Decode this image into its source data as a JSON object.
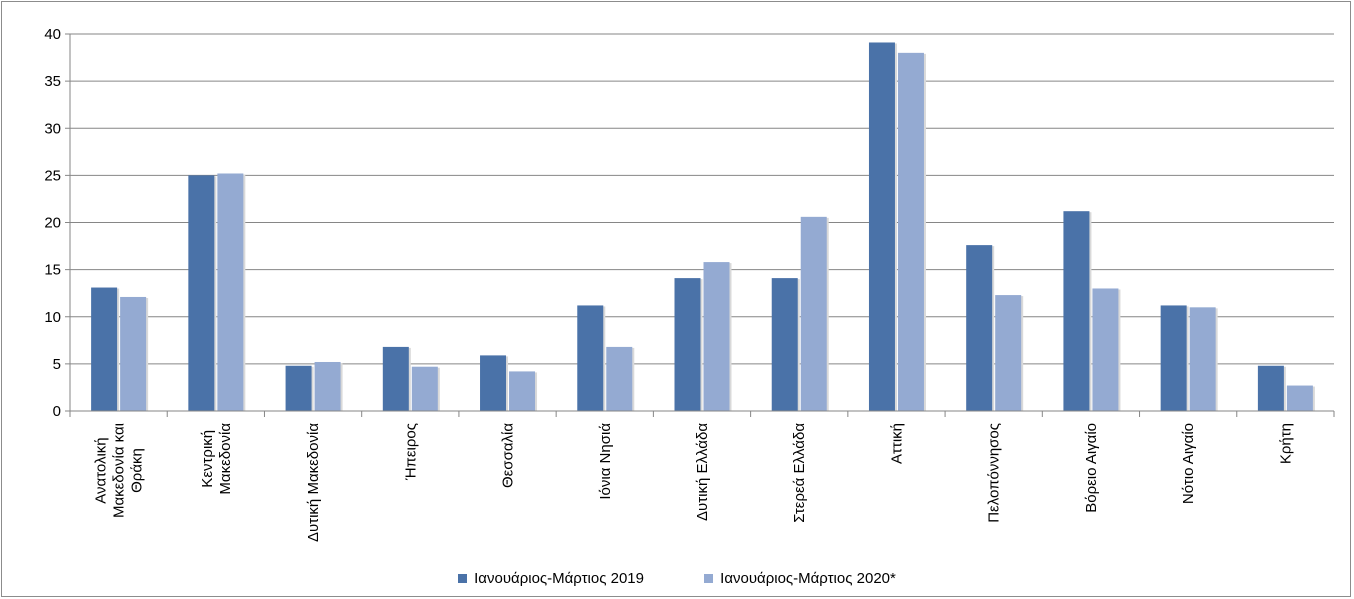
{
  "chart_data": {
    "type": "bar",
    "categories": [
      "Ανατολική Μακεδονία και Θράκη",
      "Κεντρική Μακεδονία",
      "Δυτική Μακεδονία",
      "Ήπειρος",
      "Θεσσαλία",
      "Ιόνια Νησιά",
      "Δυτική Ελλάδα",
      "Στερεά Ελλάδα",
      "Αττική",
      "Πελοπόννησος",
      "Βόρειο Αιγαίο",
      "Νότιο Αιγαίο",
      "Κρήτη"
    ],
    "category_label_lines": [
      [
        "Ανατολική",
        "Μακεδονία και",
        "Θράκη"
      ],
      [
        "Κεντρική",
        "Μακεδονία"
      ],
      [
        "Δυτική Μακεδονία"
      ],
      [
        "Ήπειρος"
      ],
      [
        "Θεσσαλία"
      ],
      [
        "Ιόνια Νησιά"
      ],
      [
        "Δυτική Ελλάδα"
      ],
      [
        "Στερεά Ελλάδα"
      ],
      [
        "Αττική"
      ],
      [
        "Πελοπόννησος"
      ],
      [
        "Βόρειο Αιγαίο"
      ],
      [
        "Νότιο Αιγαίο"
      ],
      [
        "Κρήτη"
      ]
    ],
    "series": [
      {
        "name": "Ιανουάριος-Μάρτιος 2019",
        "color": "#4a72a8",
        "values": [
          13.1,
          25.0,
          4.8,
          6.8,
          5.9,
          11.2,
          14.1,
          14.1,
          39.1,
          17.6,
          21.2,
          11.2,
          4.8
        ]
      },
      {
        "name": "Ιανουάριος-Μάρτιος 2020*",
        "color": "#94aad2",
        "values": [
          12.1,
          25.2,
          5.2,
          4.7,
          4.2,
          6.8,
          15.8,
          20.6,
          38.0,
          12.3,
          13.0,
          11.0,
          2.7
        ]
      }
    ],
    "yticks": [
      0,
      5,
      10,
      15,
      20,
      25,
      30,
      35,
      40
    ],
    "ylim": [
      0,
      40
    ],
    "grid": true,
    "legend_position": "bottom"
  }
}
